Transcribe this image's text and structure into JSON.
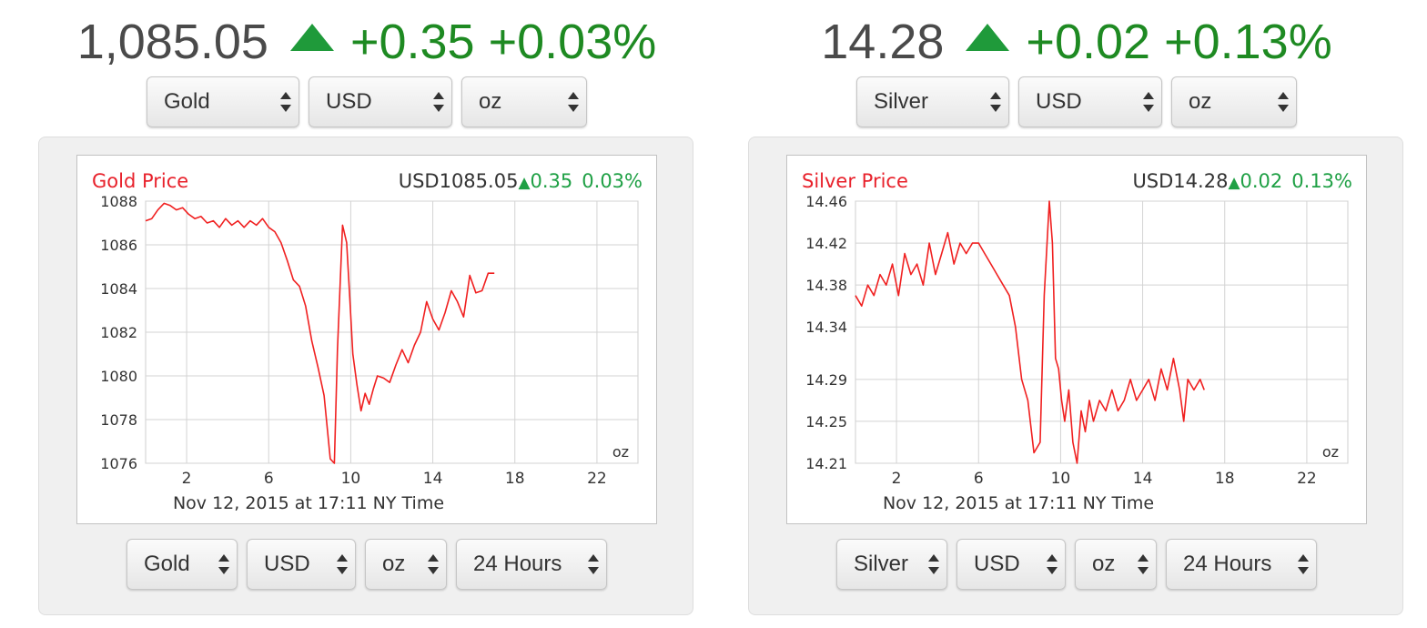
{
  "widgets": [
    {
      "headline": {
        "price": "1,085.05",
        "change": "+0.35",
        "percent": "+0.03%"
      },
      "top_selects": [
        {
          "value": "Gold",
          "width": 168
        },
        {
          "value": "USD",
          "width": 158
        },
        {
          "value": "oz",
          "width": 138
        }
      ],
      "bottom_selects": [
        {
          "value": "Gold",
          "width": 122
        },
        {
          "value": "USD",
          "width": 120
        },
        {
          "value": "oz",
          "width": 90
        },
        {
          "value": "24 Hours",
          "width": 166
        }
      ],
      "chart_data": {
        "type": "line",
        "title": "Gold Price",
        "quote": {
          "currency_price": "USD1085.05",
          "change": "0.35",
          "percent": "0.03%"
        },
        "unit_label": "oz",
        "footer": "Nov 12, 2015 at 17:11 NY Time",
        "xlim": [
          0,
          24
        ],
        "x_ticks": [
          2,
          6,
          10,
          14,
          18,
          22
        ],
        "ylim": [
          1076,
          1088
        ],
        "y_ticks": [
          {
            "value": 1076,
            "label": "1076"
          },
          {
            "value": 1078,
            "label": "1078"
          },
          {
            "value": 1080,
            "label": "1080"
          },
          {
            "value": 1082,
            "label": "1082"
          },
          {
            "value": 1084,
            "label": "1084"
          },
          {
            "value": 1086,
            "label": "1086"
          },
          {
            "value": 1088,
            "label": "1088"
          }
        ],
        "grid": true,
        "line_color": "#f02020",
        "series": [
          {
            "x": [
              0,
              0.3,
              0.6,
              0.9,
              1.2,
              1.5,
              1.8,
              2.1,
              2.4,
              2.7,
              3.0,
              3.3,
              3.6,
              3.9,
              4.2,
              4.5,
              4.8,
              5.1,
              5.4,
              5.7,
              6.0,
              6.3,
              6.6,
              6.9,
              7.2,
              7.5,
              7.8,
              8.1,
              8.4,
              8.7,
              9.0,
              9.2,
              9.35,
              9.6,
              9.8,
              9.95,
              10.1,
              10.3,
              10.5,
              10.7,
              10.9,
              11.1,
              11.3,
              11.6,
              11.9,
              12.2,
              12.5,
              12.8,
              13.1,
              13.4,
              13.7,
              14.0,
              14.3,
              14.6,
              14.9,
              15.2,
              15.5,
              15.8,
              16.1,
              16.4,
              16.7,
              17.0
            ],
            "y": [
              1087.1,
              1087.2,
              1087.6,
              1087.9,
              1087.8,
              1087.6,
              1087.7,
              1087.4,
              1087.2,
              1087.3,
              1087.0,
              1087.1,
              1086.8,
              1087.2,
              1086.9,
              1087.1,
              1086.8,
              1087.1,
              1086.9,
              1087.2,
              1086.8,
              1086.6,
              1086.1,
              1085.3,
              1084.4,
              1084.1,
              1083.2,
              1081.6,
              1080.4,
              1079.1,
              1076.2,
              1076.0,
              1081.2,
              1086.9,
              1086.1,
              1083.6,
              1081.0,
              1079.6,
              1078.4,
              1079.2,
              1078.7,
              1079.4,
              1080.0,
              1079.9,
              1079.7,
              1080.5,
              1081.2,
              1080.6,
              1081.4,
              1082.0,
              1083.4,
              1082.6,
              1082.1,
              1082.9,
              1083.9,
              1083.4,
              1082.7,
              1084.6,
              1083.8,
              1083.9,
              1084.7,
              1084.7
            ]
          }
        ]
      }
    },
    {
      "headline": {
        "price": "14.28",
        "change": "+0.02",
        "percent": "+0.13%"
      },
      "top_selects": [
        {
          "value": "Silver",
          "width": 168
        },
        {
          "value": "USD",
          "width": 158
        },
        {
          "value": "oz",
          "width": 138
        }
      ],
      "bottom_selects": [
        {
          "value": "Silver",
          "width": 122
        },
        {
          "value": "USD",
          "width": 120
        },
        {
          "value": "oz",
          "width": 90
        },
        {
          "value": "24 Hours",
          "width": 166
        }
      ],
      "chart_data": {
        "type": "line",
        "title": "Silver Price",
        "quote": {
          "currency_price": "USD14.28",
          "change": "0.02",
          "percent": "0.13%"
        },
        "unit_label": "oz",
        "footer": "Nov 12, 2015 at 17:11 NY Time",
        "xlim": [
          0,
          24
        ],
        "x_ticks": [
          2,
          6,
          10,
          14,
          18,
          22
        ],
        "ylim": [
          14.21,
          14.46
        ],
        "y_ticks": [
          {
            "value": 14.21,
            "label": "14.21"
          },
          {
            "value": 14.25,
            "label": "14.25"
          },
          {
            "value": 14.29,
            "label": "14.29"
          },
          {
            "value": 14.34,
            "label": "14.34"
          },
          {
            "value": 14.38,
            "label": "14.38"
          },
          {
            "value": 14.42,
            "label": "14.42"
          },
          {
            "value": 14.46,
            "label": "14.46"
          }
        ],
        "grid": true,
        "line_color": "#f02020",
        "series": [
          {
            "x": [
              0,
              0.3,
              0.6,
              0.9,
              1.2,
              1.5,
              1.8,
              2.1,
              2.4,
              2.7,
              3.0,
              3.3,
              3.6,
              3.9,
              4.2,
              4.5,
              4.8,
              5.1,
              5.4,
              5.7,
              6.0,
              6.3,
              6.6,
              6.9,
              7.2,
              7.5,
              7.8,
              8.1,
              8.4,
              8.7,
              9.0,
              9.2,
              9.45,
              9.6,
              9.75,
              9.9,
              10.05,
              10.2,
              10.4,
              10.6,
              10.8,
              11.0,
              11.2,
              11.4,
              11.6,
              11.9,
              12.2,
              12.5,
              12.8,
              13.1,
              13.4,
              13.7,
              14.0,
              14.3,
              14.6,
              14.9,
              15.2,
              15.5,
              15.8,
              16.0,
              16.2,
              16.5,
              16.8,
              17.0
            ],
            "y": [
              14.37,
              14.36,
              14.38,
              14.37,
              14.39,
              14.38,
              14.4,
              14.37,
              14.41,
              14.39,
              14.4,
              14.38,
              14.42,
              14.39,
              14.41,
              14.43,
              14.4,
              14.42,
              14.41,
              14.42,
              14.42,
              14.41,
              14.4,
              14.39,
              14.38,
              14.37,
              14.34,
              14.29,
              14.27,
              14.22,
              14.23,
              14.37,
              14.46,
              14.42,
              14.31,
              14.3,
              14.27,
              14.25,
              14.28,
              14.23,
              14.21,
              14.26,
              14.24,
              14.27,
              14.25,
              14.27,
              14.26,
              14.28,
              14.26,
              14.27,
              14.29,
              14.27,
              14.28,
              14.29,
              14.27,
              14.3,
              14.28,
              14.31,
              14.28,
              14.25,
              14.29,
              14.28,
              14.29,
              14.28
            ]
          }
        ]
      }
    }
  ]
}
